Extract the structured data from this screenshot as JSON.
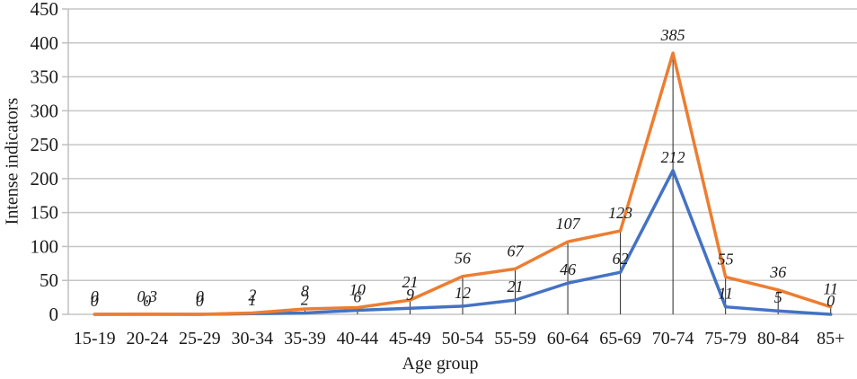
{
  "chart_data": {
    "type": "line",
    "title": "",
    "xlabel": "Age group",
    "ylabel": "Intense indicators",
    "ylim": [
      0,
      450
    ],
    "ytick_step": 50,
    "grid": "horizontal-only",
    "legend": "none",
    "drop_lines_to_series": "orange",
    "categories": [
      "15-19",
      "20-24",
      "25-29",
      "30-34",
      "35-39",
      "40-44",
      "45-49",
      "50-54",
      "55-59",
      "60-64",
      "65-69",
      "70-74",
      "75-79",
      "80-84",
      "85+"
    ],
    "series": [
      {
        "name": "blue",
        "color": "#4472C4",
        "values": [
          0,
          0,
          0,
          1,
          2,
          6,
          9,
          12,
          21,
          46,
          62,
          212,
          11,
          5,
          0
        ],
        "labels": [
          "0",
          "0",
          "0",
          "1",
          "2",
          "6",
          "9",
          "12",
          "21",
          "46",
          "62",
          "212",
          "11",
          "5",
          "0"
        ]
      },
      {
        "name": "orange",
        "color": "#ED7D31",
        "values": [
          0,
          0.3,
          0,
          2,
          8,
          10,
          21,
          56,
          67,
          107,
          123,
          385,
          55,
          36,
          11
        ],
        "labels": [
          "0",
          "0,3",
          "0",
          "2",
          "8",
          "10",
          "21",
          "56",
          "67",
          "107",
          "123",
          "385",
          "55",
          "36",
          "11"
        ]
      }
    ]
  },
  "colors": {
    "grid": "#C6C6C6",
    "axis": "#BFBFBF",
    "drop_line": "#262626",
    "text": "#1A1A1A"
  }
}
